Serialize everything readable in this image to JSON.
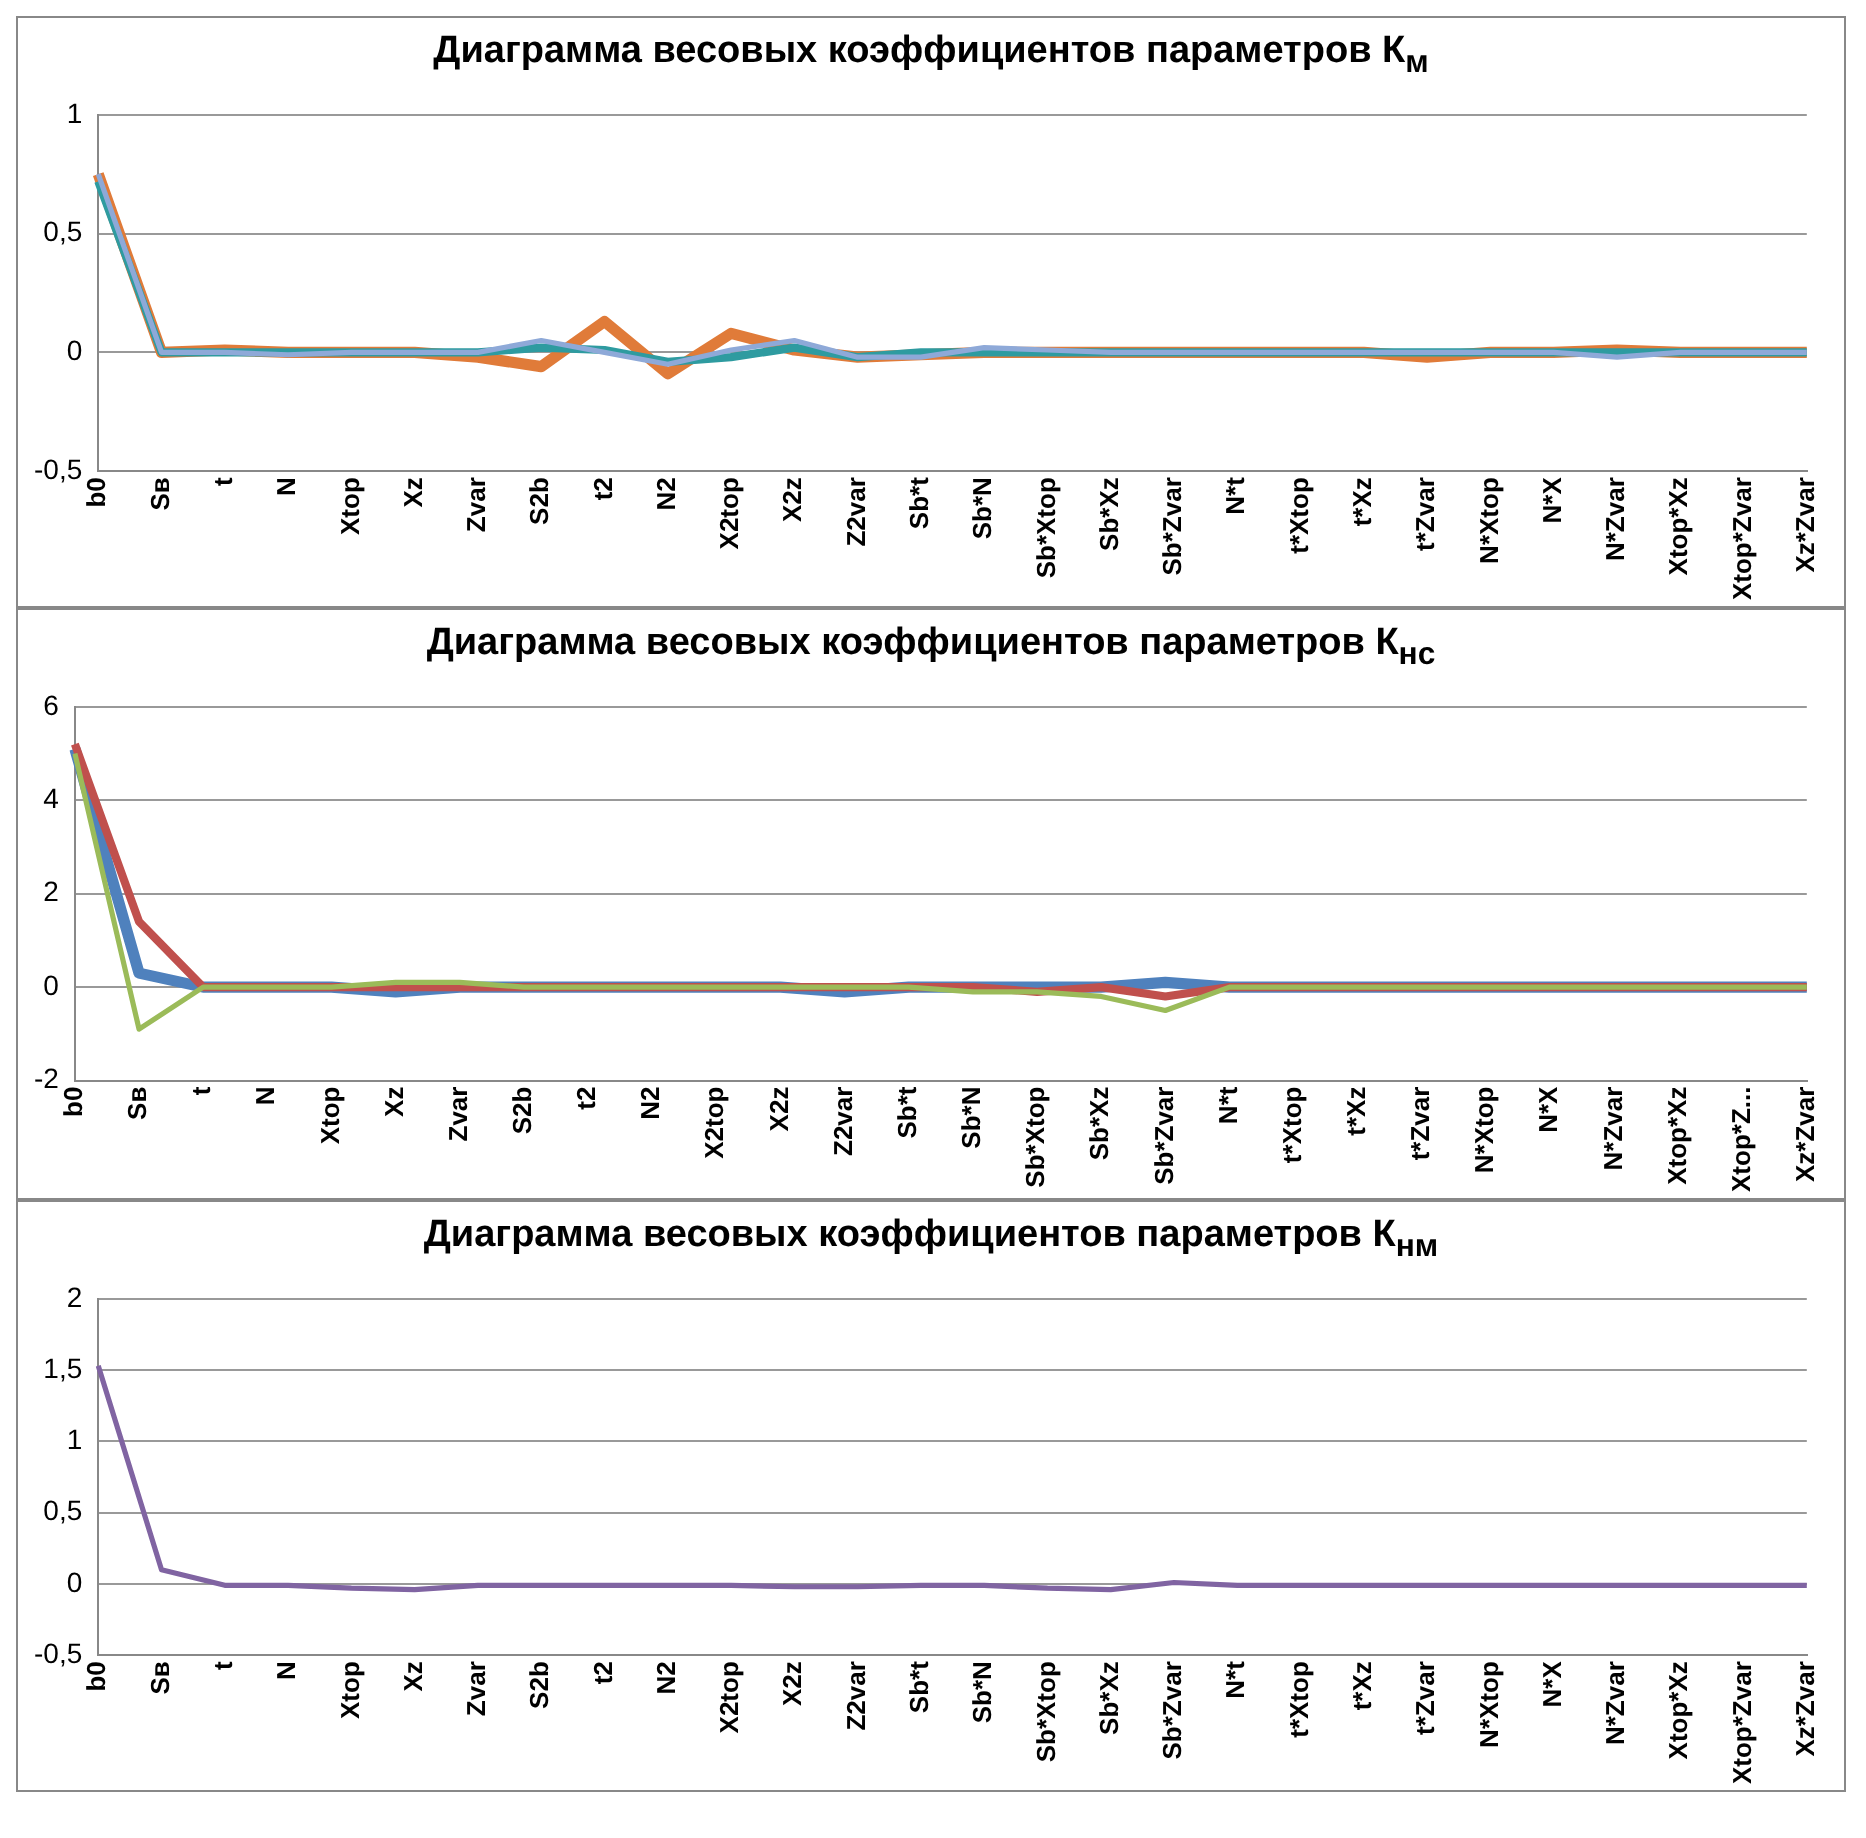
{
  "chart_data": [
    {
      "type": "line",
      "title": "Диаграмма весовых коэффициентов параметров К$_{м}$",
      "categories": [
        "b0",
        "Sв",
        "t",
        "N",
        "Xtop",
        "Xz",
        "Zvar",
        "S2b",
        "t2",
        "N2",
        "X2top",
        "X2z",
        "Z2var",
        "Sb*t",
        "Sb*N",
        "Sb*Xtop",
        "Sb*Xz",
        "Sb*Zvar",
        "N*t",
        "t*Xtop",
        "t*Xz",
        "t*Zvar",
        "N*Xtop",
        "N*X",
        "N*Zvar",
        "Xtop*Xz",
        "Xtop*Zvar",
        "Xz*Zvar"
      ],
      "series": [
        {
          "color": "#e07b39",
          "values": [
            0.75,
            0,
            0.01,
            0,
            0,
            0,
            -0.02,
            -0.06,
            0.13,
            -0.09,
            0.08,
            0.01,
            -0.02,
            -0.01,
            0,
            0,
            0,
            0,
            0,
            0,
            0,
            -0.02,
            0,
            0,
            0.01,
            0,
            0,
            0
          ]
        },
        {
          "color": "#2e9ba0",
          "values": [
            0.72,
            0,
            0,
            0,
            0,
            0,
            0,
            0.02,
            0.01,
            -0.04,
            -0.02,
            0.02,
            -0.02,
            0,
            0,
            0,
            0,
            0,
            0,
            0,
            0,
            0,
            0,
            0,
            0,
            0,
            0,
            0
          ]
        },
        {
          "color": "#8ea9d8",
          "values": [
            0.75,
            0,
            0,
            -0.01,
            0,
            0,
            0,
            0.05,
            0,
            -0.05,
            0.01,
            0.05,
            -0.02,
            -0.02,
            0.02,
            0.01,
            0,
            0,
            0,
            0,
            0,
            0,
            0,
            0,
            -0.02,
            0,
            0,
            0
          ]
        }
      ],
      "ylim": [
        -0.5,
        1
      ],
      "yticks": [
        {
          "value": -0.5,
          "label": "-0,5"
        },
        0,
        {
          "value": 0.5,
          "label": "0,5"
        },
        1
      ],
      "grid": "y",
      "marker": "none"
    },
    {
      "type": "line",
      "title": "Диаграмма весовых коэффициентов параметров К$_{нс}$",
      "categories": [
        "b0",
        "Sв",
        "t",
        "N",
        "Xtop",
        "Xz",
        "Zvar",
        "S2b",
        "t2",
        "N2",
        "X2top",
        "X2z",
        "Z2var",
        "Sb*t",
        "Sb*N",
        "Sb*Xtop",
        "Sb*Xz",
        "Sb*Zvar",
        "N*t",
        "t*Xtop",
        "t*Xz",
        "t*Zvar",
        "N*Xtop",
        "N*X",
        "N*Zvar",
        "Xtop*Xz",
        "Xtop*Z...",
        "Xz*Zvar"
      ],
      "series": [
        {
          "color": "#4f81bd",
          "values": [
            5.1,
            0.3,
            0,
            0,
            0,
            -0.1,
            0,
            0,
            0,
            0,
            0,
            0,
            -0.1,
            0,
            0,
            0,
            0,
            0.1,
            0,
            0,
            0,
            0,
            0,
            0,
            0,
            0,
            0,
            0
          ]
        },
        {
          "color": "#c0504d",
          "values": [
            5.2,
            1.4,
            0,
            0,
            0,
            0,
            0,
            0,
            0,
            0,
            0,
            0,
            0,
            0,
            0,
            -0.1,
            0,
            -0.2,
            0,
            0,
            0,
            0,
            0,
            0,
            0,
            0,
            0,
            0
          ]
        },
        {
          "color": "#9bbb59",
          "values": [
            5.0,
            -0.9,
            0,
            0,
            0,
            0.1,
            0.1,
            0,
            0,
            0,
            0,
            0,
            0,
            0,
            -0.1,
            -0.1,
            -0.2,
            -0.5,
            0,
            0,
            0,
            0,
            0,
            0,
            0,
            0,
            0,
            0
          ]
        }
      ],
      "ylim": [
        -2,
        6
      ],
      "yticks": [
        -2,
        0,
        2,
        4,
        6
      ],
      "grid": "y",
      "marker": "none"
    },
    {
      "type": "line",
      "title": "Диаграмма весовых коэффициентов параметров К$_{нм}$",
      "categories": [
        "b0",
        "Sв",
        "t",
        "N",
        "Xtop",
        "Xz",
        "Zvar",
        "S2b",
        "t2",
        "N2",
        "X2top",
        "X2z",
        "Z2var",
        "Sb*t",
        "Sb*N",
        "Sb*Xtop",
        "Sb*Xz",
        "Sb*Zvar",
        "N*t",
        "t*Xtop",
        "t*Xz",
        "t*Zvar",
        "N*Xtop",
        "N*X",
        "N*Zvar",
        "Xtop*Xz",
        "Xtop*Zvar",
        "Xz*Zvar"
      ],
      "series": [
        {
          "color": "#8064a2",
          "values": [
            1.53,
            0.1,
            -0.01,
            -0.01,
            -0.03,
            -0.04,
            -0.01,
            -0.01,
            -0.01,
            -0.01,
            -0.01,
            -0.02,
            -0.02,
            -0.01,
            -0.01,
            -0.03,
            -0.04,
            0.01,
            -0.01,
            -0.01,
            -0.01,
            -0.01,
            -0.01,
            -0.01,
            -0.01,
            -0.01,
            -0.01,
            -0.01
          ]
        }
      ],
      "ylim": [
        -0.5,
        2
      ],
      "yticks": [
        {
          "value": -0.5,
          "label": "-0,5"
        },
        0,
        {
          "value": 0.5,
          "label": "0,5"
        },
        1,
        {
          "value": 1.5,
          "label": "1,5"
        },
        2
      ],
      "grid": "y",
      "marker": "none"
    }
  ]
}
